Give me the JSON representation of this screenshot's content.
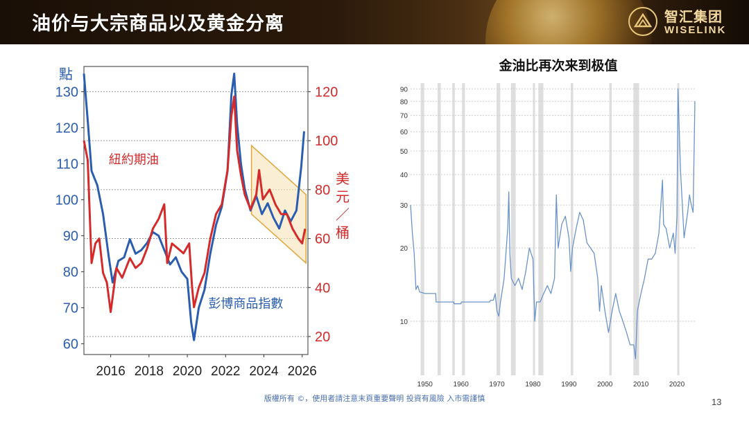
{
  "header": {
    "title": "油价与大宗商品以及黄金分离",
    "logo_name": "智汇集团",
    "logo_en": "WISELINK"
  },
  "chart_data": [
    {
      "type": "line",
      "left_unit_label": "點",
      "right_unit_label": "美元／桶",
      "y_left": {
        "ticks": [
          60,
          70,
          80,
          90,
          100,
          110,
          120,
          130
        ],
        "range": [
          57,
          137
        ]
      },
      "y_right": {
        "ticks": [
          20,
          40,
          60,
          80,
          100,
          120
        ],
        "range": [
          20,
          120
        ]
      },
      "x_ticks": [
        "2016",
        "2018",
        "2020",
        "2022",
        "2024",
        "2026"
      ],
      "x_range": [
        2014.6,
        2026.3
      ],
      "series": [
        {
          "name": "彭博商品指數",
          "axis": "left",
          "color": "#2a5db0",
          "x": [
            2014.6,
            2014.8,
            2015.0,
            2015.3,
            2015.6,
            2015.9,
            2016.1,
            2016.4,
            2016.7,
            2017.0,
            2017.3,
            2017.6,
            2017.9,
            2018.2,
            2018.5,
            2018.8,
            2019.1,
            2019.4,
            2019.7,
            2020.0,
            2020.2,
            2020.35,
            2020.6,
            2020.9,
            2021.2,
            2021.5,
            2021.8,
            2022.1,
            2022.3,
            2022.45,
            2022.6,
            2022.8,
            2023.0,
            2023.3,
            2023.6,
            2023.9,
            2024.2,
            2024.5,
            2024.8,
            2025.1,
            2025.4,
            2025.7,
            2025.95,
            2026.1
          ],
          "y": [
            135,
            122,
            108,
            104,
            96,
            84,
            77,
            83,
            84,
            89,
            85,
            86,
            88,
            91,
            90,
            86,
            82,
            84,
            80,
            78,
            66,
            61,
            70,
            75,
            85,
            93,
            98,
            108,
            129,
            135,
            121,
            110,
            103,
            97,
            101,
            96,
            99,
            95,
            92,
            97,
            94,
            97,
            109,
            119
          ]
        },
        {
          "name": "紐約期油",
          "axis": "right",
          "color": "#d42a2a",
          "x": [
            2014.6,
            2014.8,
            2015.0,
            2015.2,
            2015.4,
            2015.6,
            2015.8,
            2016.0,
            2016.1,
            2016.3,
            2016.6,
            2017.0,
            2017.3,
            2017.6,
            2017.9,
            2018.2,
            2018.5,
            2018.8,
            2018.95,
            2019.2,
            2019.5,
            2019.8,
            2020.1,
            2020.25,
            2020.35,
            2020.6,
            2020.9,
            2021.2,
            2021.5,
            2021.8,
            2022.1,
            2022.3,
            2022.45,
            2022.6,
            2022.8,
            2023.0,
            2023.3,
            2023.6,
            2023.75,
            2023.95,
            2024.3,
            2024.6,
            2024.9,
            2025.2,
            2025.5,
            2025.8,
            2026.0,
            2026.15
          ],
          "y": [
            100,
            92,
            50,
            58,
            60,
            46,
            42,
            30,
            36,
            48,
            44,
            52,
            48,
            50,
            56,
            64,
            68,
            74,
            50,
            58,
            56,
            54,
            58,
            40,
            32,
            40,
            46,
            60,
            70,
            74,
            88,
            110,
            118,
            96,
            86,
            78,
            72,
            78,
            88,
            76,
            80,
            74,
            70,
            70,
            64,
            60,
            58,
            64
          ]
        }
      ],
      "annotations": [
        {
          "text": "紐約期油",
          "color": "#d42a2a"
        },
        {
          "text": "彭博商品指數",
          "color": "#2a5db0"
        }
      ]
    },
    {
      "type": "line",
      "title": "金油比再次来到极值",
      "y_scale": "log",
      "y_ticks": [
        10,
        20,
        30,
        40,
        50,
        60,
        70,
        80,
        90
      ],
      "y_range": [
        6,
        95
      ],
      "x_ticks": [
        "1950",
        "1960",
        "1970",
        "1980",
        "1990",
        "2000",
        "2010",
        "2020"
      ],
      "x_range": [
        1946,
        2025
      ],
      "recessions": [
        [
          1948.8,
          1949.8
        ],
        [
          1953.5,
          1954.4
        ],
        [
          1957.6,
          1958.3
        ],
        [
          1960.3,
          1961.1
        ],
        [
          1969.9,
          1970.9
        ],
        [
          1973.9,
          1975.2
        ],
        [
          1980.0,
          1980.5
        ],
        [
          1981.5,
          1982.9
        ],
        [
          1990.5,
          1991.2
        ],
        [
          2001.2,
          2001.9
        ],
        [
          2007.9,
          2009.5
        ],
        [
          2020.1,
          2020.4
        ]
      ],
      "series": [
        {
          "name": "",
          "color": "#6b93cb",
          "x": [
            1946,
            1946.5,
            1947,
            1947.5,
            1948,
            1948.5,
            1950,
            1950.1,
            1953,
            1953.1,
            1958,
            1958.1,
            1960,
            1960.1,
            1966,
            1966.5,
            1968,
            1968.2,
            1969,
            1969.5,
            1970,
            1970.5,
            1971,
            1972,
            1973,
            1973.3,
            1973.6,
            1974,
            1975,
            1976,
            1977,
            1978,
            1979,
            1980,
            1980.5,
            1981,
            1982,
            1983,
            1984,
            1985,
            1986,
            1986.5,
            1987,
            1988,
            1989,
            1990,
            1990.5,
            1991,
            1992,
            1993,
            1994,
            1995,
            1996,
            1997,
            1998,
            1998.5,
            1999,
            2000,
            2001,
            2002,
            2003,
            2004,
            2005,
            2006,
            2007,
            2008,
            2008.5,
            2009,
            2010,
            2011,
            2012,
            2013,
            2014,
            2015,
            2016,
            2016.3,
            2017,
            2018,
            2019,
            2019.5,
            2020,
            2020.3,
            2021,
            2022,
            2023,
            2023.5,
            2024,
            2024.5,
            2025
          ],
          "y": [
            30,
            23,
            19,
            13.5,
            14,
            13.2,
            13,
            13,
            13,
            12,
            12,
            11.8,
            11.8,
            12,
            12,
            12,
            12,
            12.2,
            12.2,
            13,
            11,
            10.5,
            12,
            15,
            24,
            34,
            19,
            15,
            14,
            15,
            13.5,
            16,
            20,
            18,
            10,
            12,
            12,
            13,
            14,
            13,
            15,
            33,
            20,
            25,
            27,
            22,
            16,
            20,
            24,
            28,
            26,
            21,
            20,
            19,
            15,
            11,
            14,
            11,
            9,
            11,
            13,
            11,
            10,
            9,
            8,
            8,
            7,
            11,
            13,
            15,
            18,
            18,
            19,
            23,
            38,
            25,
            24,
            20,
            23,
            19,
            27,
            90,
            42,
            22,
            28,
            33,
            30,
            28,
            80
          ]
        }
      ]
    }
  ],
  "footer": {
    "disclaimer": "版權所有 ©，使用者請注意末頁重要聲明 投資有風險 入市需謹慎",
    "page_number": "13"
  }
}
